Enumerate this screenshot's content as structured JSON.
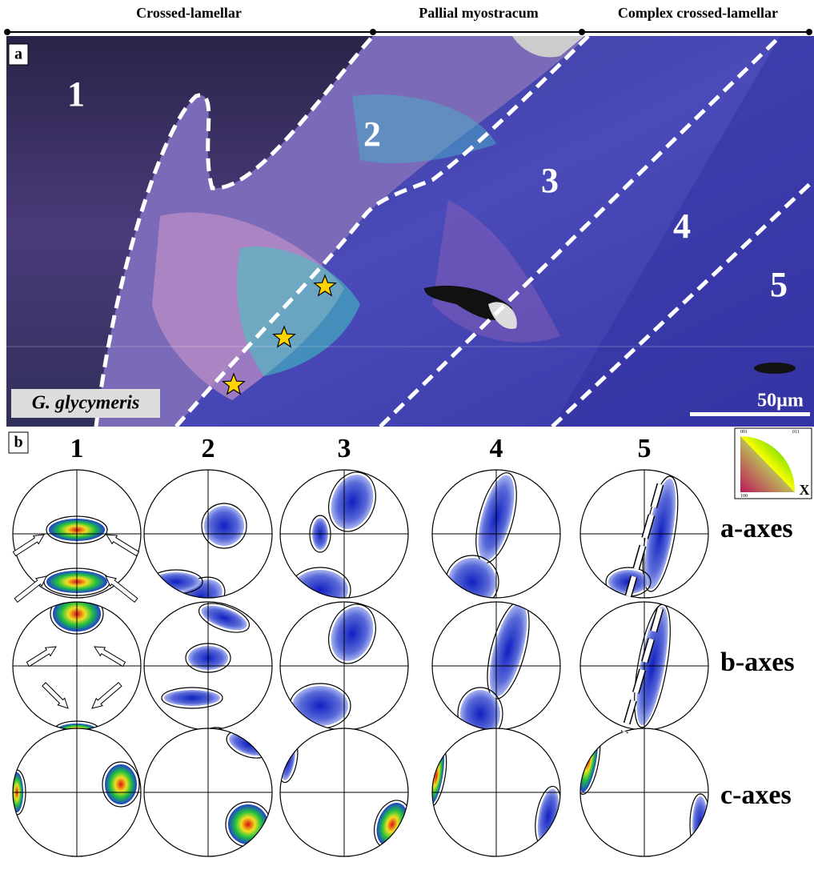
{
  "header": {
    "segments": [
      "Crossed-lamellar",
      "Pallial myostracum",
      "Complex crossed-lamellar"
    ]
  },
  "panel_a": {
    "label": "a",
    "zones": [
      "1",
      "2",
      "3",
      "4",
      "5"
    ],
    "species": "G. glycymeris",
    "scale_bar": "50µm"
  },
  "panel_b": {
    "label": "b",
    "columns": [
      "1",
      "2",
      "3",
      "4",
      "5"
    ],
    "rows": [
      "a-axes",
      "b-axes",
      "c-axes"
    ],
    "color_key": {
      "axis": "X",
      "corners": [
        "001",
        "011",
        "100"
      ]
    }
  }
}
